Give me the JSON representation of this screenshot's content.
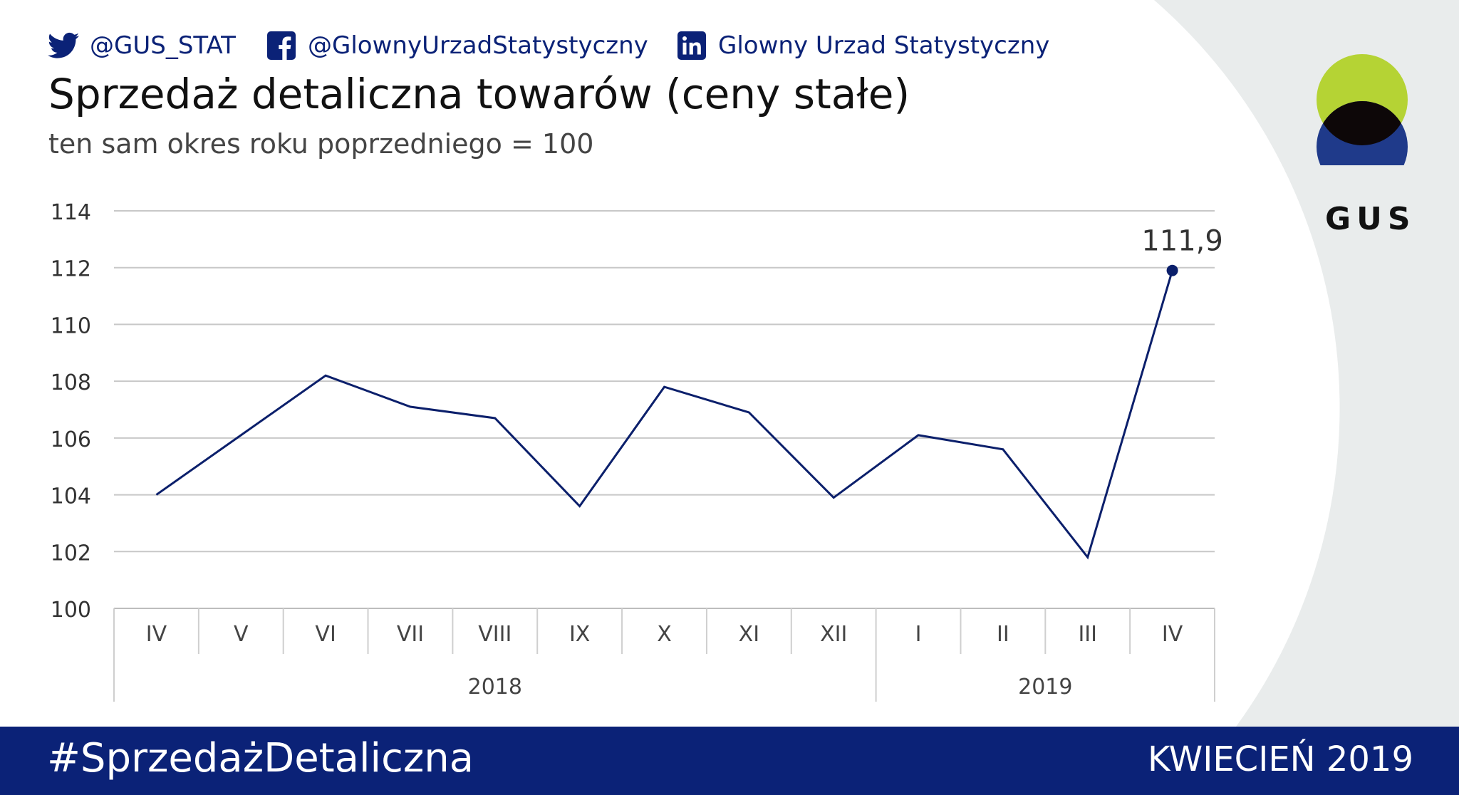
{
  "social": {
    "twitter": "@GUS_STAT",
    "facebook": "@GlownyUrzadStatystyczny",
    "linkedin": "Glowny Urzad Statystyczny",
    "twitter_icon": "twitter-bird-icon",
    "facebook_icon": "facebook-icon",
    "linkedin_icon": "linkedin-icon"
  },
  "logo": {
    "text": "GUS",
    "colors": {
      "top": "#b5d334",
      "bottom": "#1f3a8a",
      "overlap": "#0d0708"
    }
  },
  "footer": {
    "hashtag": "#SprzedażDetaliczna",
    "period": "KWIECIEŃ 2019"
  },
  "colors": {
    "navy": "#0b2277",
    "line": "#0b1f6b",
    "grid": "#c8c8c8"
  },
  "chart_data": {
    "type": "line",
    "title": "Sprzedaż detaliczna towarów (ceny stałe)",
    "subtitle": "ten sam okres roku poprzedniego = 100",
    "categories": [
      "IV",
      "V",
      "VI",
      "VII",
      "VIII",
      "IX",
      "X",
      "XI",
      "XII",
      "I",
      "II",
      "III",
      "IV"
    ],
    "groups": [
      {
        "label": "2018",
        "count": 9
      },
      {
        "label": "2019",
        "count": 4
      }
    ],
    "values": [
      104.0,
      106.1,
      108.2,
      107.1,
      106.7,
      103.6,
      107.8,
      106.9,
      103.9,
      106.1,
      105.6,
      101.8,
      111.9
    ],
    "yticks": [
      "100",
      "102",
      "104",
      "106",
      "108",
      "110",
      "112",
      "114"
    ],
    "ylim": [
      100,
      114
    ],
    "grid": true,
    "annotation": {
      "index": 12,
      "label": "111,9"
    }
  }
}
